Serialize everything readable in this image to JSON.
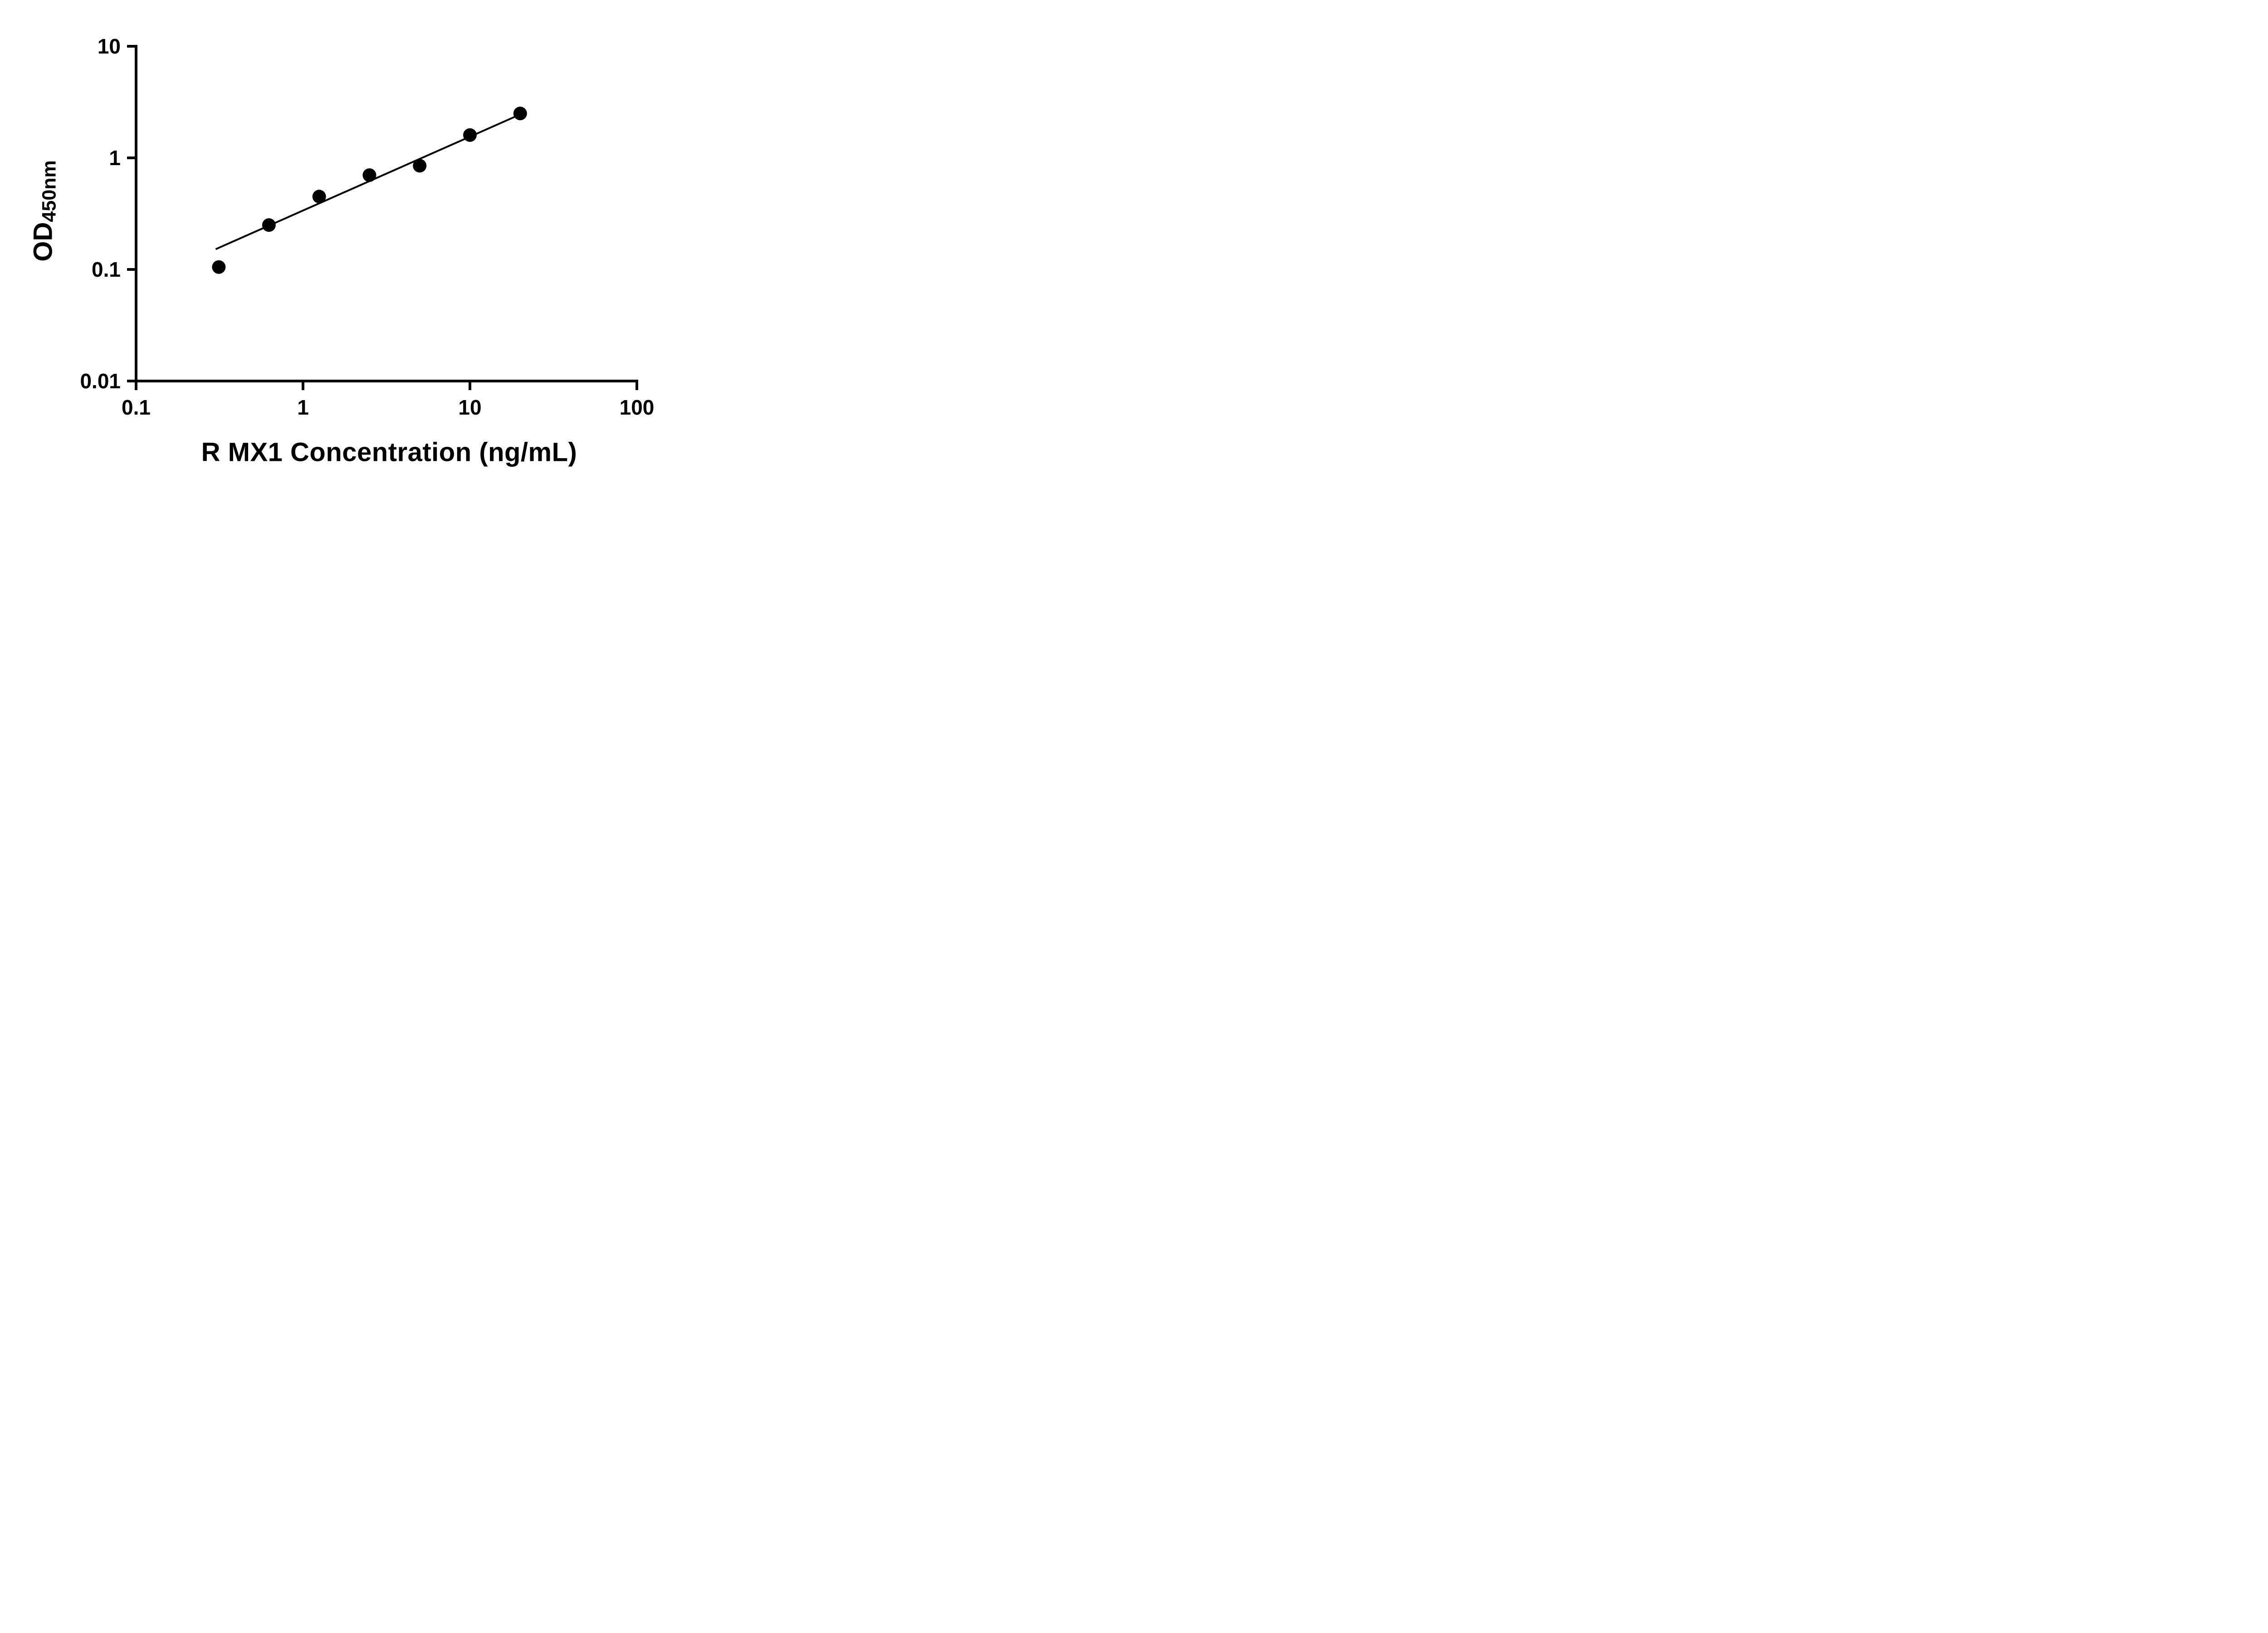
{
  "chart_data": {
    "type": "scatter",
    "title": "",
    "xlabel": "R MX1 Concentration (ng/mL)",
    "ylabel_main": "OD",
    "ylabel_sub": "450nm",
    "x_scale": "log",
    "y_scale": "log",
    "xlim": [
      0.1,
      100
    ],
    "ylim": [
      0.01,
      10
    ],
    "grid": false,
    "legend": false,
    "axis_color": "#000000",
    "marker_color": "#000000",
    "line_color": "#000000",
    "x_ticks": [
      {
        "value": 0.1,
        "label": "0.1"
      },
      {
        "value": 1,
        "label": "1"
      },
      {
        "value": 10,
        "label": "10"
      },
      {
        "value": 100,
        "label": "100"
      }
    ],
    "y_ticks": [
      {
        "value": 0.01,
        "label": "0.01"
      },
      {
        "value": 0.1,
        "label": "0.1"
      },
      {
        "value": 1,
        "label": "1"
      },
      {
        "value": 10,
        "label": "10"
      }
    ],
    "series": [
      {
        "name": "fit-line",
        "type": "line",
        "color": "#000000",
        "points": [
          {
            "x": 0.3,
            "y": 0.152
          },
          {
            "x": 20.0,
            "y": 2.45
          }
        ]
      },
      {
        "name": "standards",
        "type": "scatter",
        "marker": "circle",
        "color": "#000000",
        "points": [
          {
            "x": 0.313,
            "y": 0.105
          },
          {
            "x": 0.625,
            "y": 0.25
          },
          {
            "x": 1.25,
            "y": 0.45
          },
          {
            "x": 2.5,
            "y": 0.7
          },
          {
            "x": 5.0,
            "y": 0.85
          },
          {
            "x": 10.0,
            "y": 1.6
          },
          {
            "x": 20.0,
            "y": 2.5
          }
        ]
      }
    ]
  }
}
